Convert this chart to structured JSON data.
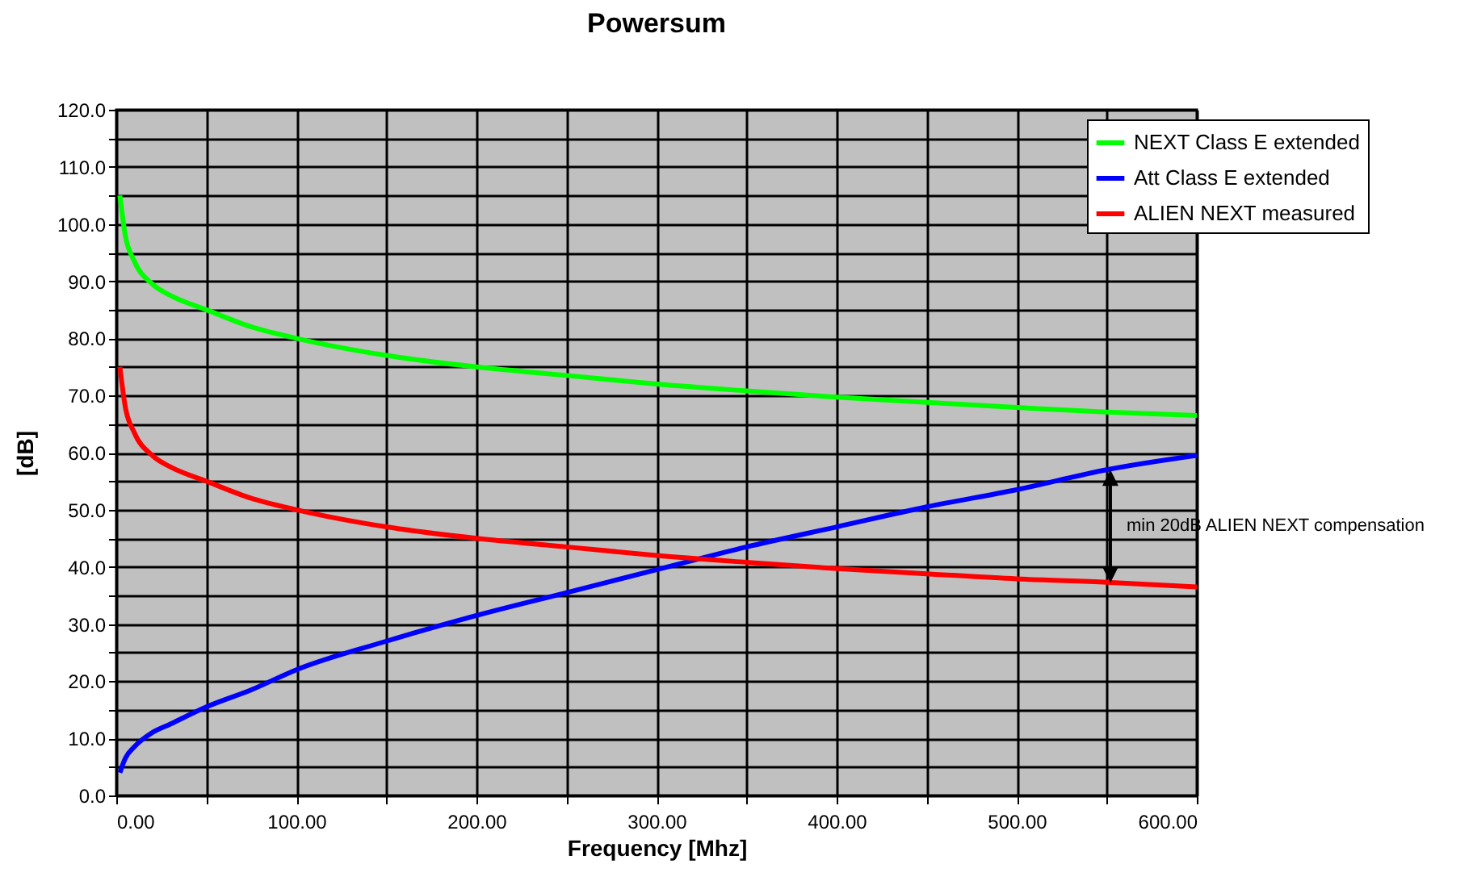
{
  "chart_data": {
    "type": "line",
    "title": "Powersum",
    "xlabel": "Frequency [Mhz]",
    "ylabel": "[dB]",
    "x": [
      2,
      5,
      10,
      20,
      30,
      50,
      75,
      100,
      150,
      200,
      250,
      300,
      350,
      400,
      450,
      500,
      550,
      600
    ],
    "series": [
      {
        "name": "NEXT Class E extended",
        "color": "#00ff00",
        "values": [
          105,
          98,
          93.5,
          89.5,
          87.5,
          85,
          82,
          80,
          77,
          75,
          73.5,
          72,
          70.8,
          69.7,
          68.8,
          67.9,
          67.1,
          66.5
        ]
      },
      {
        "name": "Att Class E extended",
        "color": "#0000ff",
        "values": [
          4,
          6.5,
          8.5,
          11,
          12.5,
          15.5,
          18.5,
          22,
          27,
          31.5,
          35.5,
          39.5,
          43.5,
          47,
          50.5,
          53.5,
          57,
          59.5
        ]
      },
      {
        "name": "ALIEN NEXT measured",
        "color": "#ff0000",
        "values": [
          75,
          68,
          63.5,
          59.5,
          57.5,
          55,
          52,
          50,
          47,
          45,
          43.5,
          42,
          40.8,
          39.7,
          38.8,
          37.9,
          37.3,
          36.5
        ]
      }
    ],
    "xlim": [
      0,
      600
    ],
    "xticks": [
      {
        "value": 0,
        "label": "0.00"
      },
      {
        "value": 50,
        "label": null
      },
      {
        "value": 100,
        "label": "100.00"
      },
      {
        "value": 150,
        "label": null
      },
      {
        "value": 200,
        "label": "200.00"
      },
      {
        "value": 250,
        "label": null
      },
      {
        "value": 300,
        "label": "300.00"
      },
      {
        "value": 350,
        "label": null
      },
      {
        "value": 400,
        "label": "400.00"
      },
      {
        "value": 450,
        "label": null
      },
      {
        "value": 500,
        "label": "500.00"
      },
      {
        "value": 550,
        "label": null
      },
      {
        "value": 600,
        "label": "600.00"
      }
    ],
    "ylim": [
      0,
      120
    ],
    "yticks": [
      {
        "value": 0,
        "label": "0.0"
      },
      {
        "value": 5,
        "label": null
      },
      {
        "value": 10,
        "label": "10.0"
      },
      {
        "value": 15,
        "label": null
      },
      {
        "value": 20,
        "label": "20.0"
      },
      {
        "value": 25,
        "label": null
      },
      {
        "value": 30,
        "label": "30.0"
      },
      {
        "value": 35,
        "label": null
      },
      {
        "value": 40,
        "label": "40.0"
      },
      {
        "value": 45,
        "label": null
      },
      {
        "value": 50,
        "label": "50.0"
      },
      {
        "value": 55,
        "label": null
      },
      {
        "value": 60,
        "label": "60.0"
      },
      {
        "value": 65,
        "label": null
      },
      {
        "value": 70,
        "label": "70.0"
      },
      {
        "value": 75,
        "label": null
      },
      {
        "value": 80,
        "label": "80.0"
      },
      {
        "value": 85,
        "label": null
      },
      {
        "value": 90,
        "label": "90.0"
      },
      {
        "value": 95,
        "label": null
      },
      {
        "value": 100,
        "label": "100.0"
      },
      {
        "value": 105,
        "label": null
      },
      {
        "value": 110,
        "label": "110.0"
      },
      {
        "value": 115,
        "label": null
      },
      {
        "value": 120,
        "label": "120.0"
      }
    ],
    "grid": true,
    "legend": "top right",
    "marker": "none",
    "line_style": "solid",
    "annotations": [
      "min 20dB ALIEN NEXT compensation"
    ]
  }
}
